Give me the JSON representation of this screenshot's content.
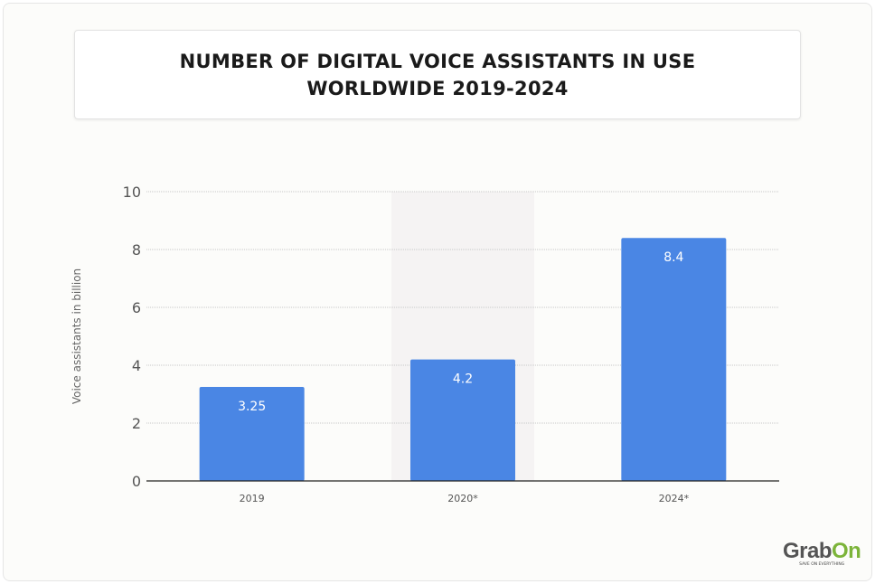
{
  "chart_data": {
    "type": "bar",
    "title": "NUMBER OF DIGITAL VOICE ASSISTANTS IN USE WORLDWIDE 2019-2024",
    "categories": [
      "2019",
      "2020*",
      "2024*"
    ],
    "values": [
      3.25,
      4.2,
      8.4
    ],
    "data_labels": [
      "3.25",
      "4.2",
      "8.4"
    ],
    "xlabel": "",
    "ylabel": "Voice assistants in billion",
    "ylim": [
      0,
      10
    ],
    "yticks": [
      "0",
      "2",
      "4",
      "6",
      "8",
      "10"
    ],
    "grid": true,
    "highlighted_category": "2020*",
    "bar_color": "#4a86e4",
    "highlight_color": "#f5f3f3"
  },
  "logo": {
    "word_a": "Grab",
    "word_b": "On",
    "tagline": "SAVE ON EVERYTHING"
  }
}
